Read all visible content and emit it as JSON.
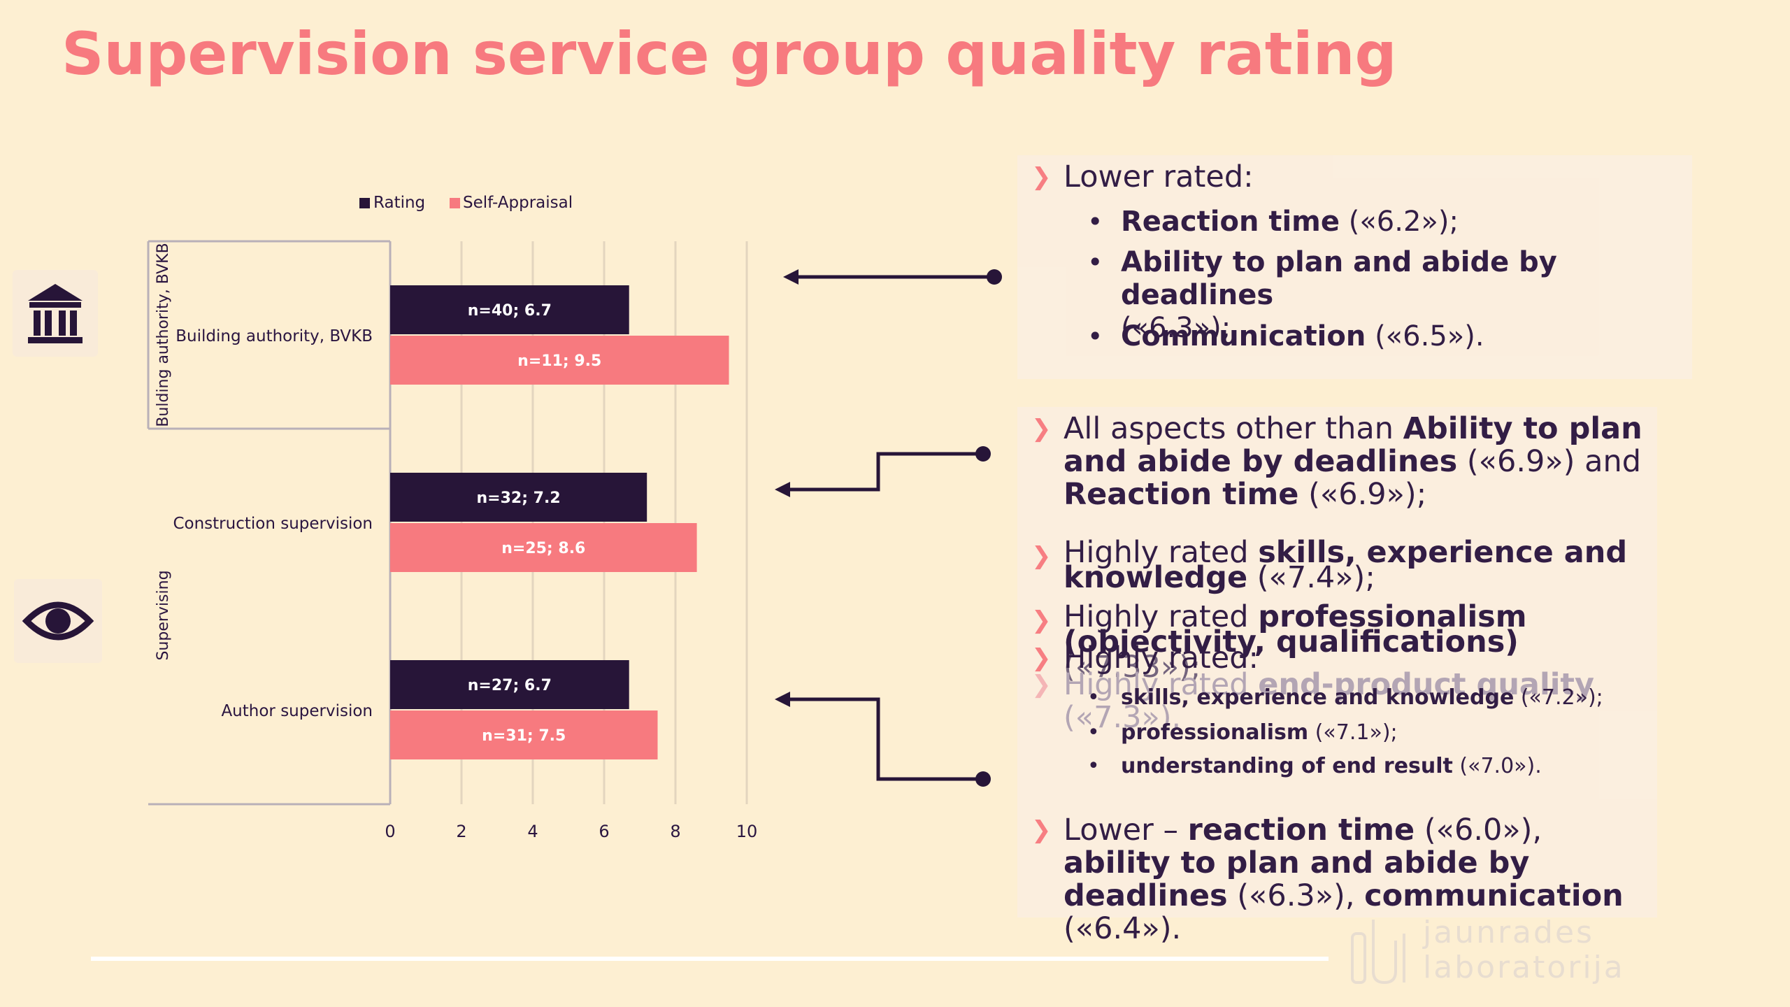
{
  "title": "Supervision service group quality rating",
  "chart_data": {
    "type": "bar",
    "orientation": "horizontal",
    "groups": [
      {
        "name": "Bulding authority, BVKB",
        "categories": [
          "Building authority, BVKB"
        ]
      },
      {
        "name": "Supervising",
        "categories": [
          "Construction supervision",
          "Author supervision"
        ]
      }
    ],
    "categories": [
      "Building authority, BVKB",
      "Construction supervision",
      "Author supervision"
    ],
    "series": [
      {
        "name": "Rating",
        "color": "#271538",
        "values": [
          6.7,
          7.2,
          6.7
        ],
        "n": [
          40,
          32,
          27
        ],
        "labels": [
          "n=40; 6.7",
          "n=32; 7.2",
          "n=27; 6.7"
        ]
      },
      {
        "name": "Self-Appraisal",
        "color": "#f77a7f",
        "values": [
          9.5,
          8.6,
          7.5
        ],
        "n": [
          11,
          25,
          31
        ],
        "labels": [
          "n=11; 9.5",
          "n=25; 8.6",
          "n=31; 7.5"
        ]
      }
    ],
    "xlim": [
      0,
      10
    ],
    "xticks": [
      "0",
      "2",
      "4",
      "6",
      "8",
      "10"
    ],
    "legend_position": "top",
    "grid": true
  },
  "icons": {
    "building": "bank-building-icon",
    "eye": "eye-icon"
  },
  "panel1": {
    "heading": "Lower rated:",
    "items": [
      {
        "bold": "Reaction time",
        "rest": " («6.2»);"
      },
      {
        "bold": "Ability to plan and abide by deadlines",
        "rest": "(«6.3»);"
      },
      {
        "bold": "Communication",
        "rest": " («6.5»)."
      }
    ]
  },
  "panel2": {
    "p1_a": "All aspects other than ",
    "p1_b": "Ability to plan and abide by deadlines",
    "p1_c": " («6.9») and ",
    "p1_d": "Reaction time",
    "p1_e": " («6.9»);",
    "p2_a": "Highly rated ",
    "p2_b": "skills, experience and knowledge",
    "p2_c": " («7.4»);",
    "p3_a": "Highly rated ",
    "p3_b": "professionalism (objectivity, qualifications)",
    "p3_c": " («7.33»);",
    "p4_a": "Highly rated ",
    "p4_b": "end-product quality",
    "p4_c": " («7.3»).",
    "p5": "Highly rated:",
    "sub": [
      {
        "bold": "skills, experience and knowledge",
        "rest": " («7.2»);"
      },
      {
        "bold": "professionalism",
        "rest": " («7.1»);"
      },
      {
        "bold": "understanding of end result",
        "rest": " («7.0»)."
      }
    ],
    "p6_a": "Lower – ",
    "p6_b": "reaction time",
    "p6_c": " («6.0»), ",
    "p6_d": "ability to plan and abide by deadlines",
    "p6_e": " («6.3»), ",
    "p6_f": "communication",
    "p6_g": " («6.4»)."
  },
  "logo": {
    "line1": "jaunrades",
    "line2": "laboratorija"
  }
}
